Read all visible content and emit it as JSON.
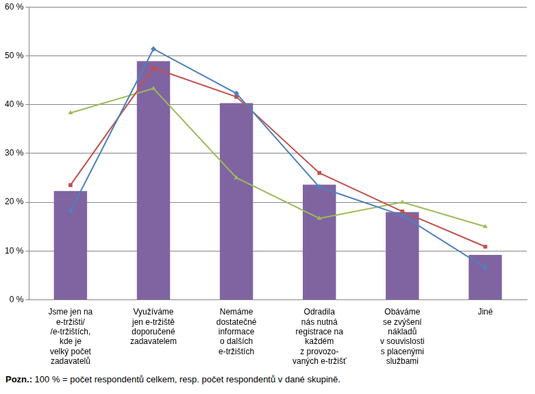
{
  "chart_data": {
    "type": "bar",
    "categories": [
      [
        "Jsme jen na",
        "e-tržišti/",
        "/e-tržištích,",
        "kde je",
        "velký počet",
        "zadavatelů"
      ],
      [
        "Využíváme",
        "jen e-tržiště",
        "doporučené",
        "zadavatelem"
      ],
      [
        "Nemáme",
        "dostatečné",
        "informace",
        "o dalších",
        "e-tržištích"
      ],
      [
        "Odradila",
        "nás nutná",
        "registrace na",
        "každém",
        "z provozo-",
        "vaných e-tržišť"
      ],
      [
        "Obáváme",
        "se zvýšení",
        "nákladů",
        "v souvislosti",
        "s placenými",
        "službami"
      ],
      [
        "Jiné"
      ]
    ],
    "series": [
      {
        "type": "bar",
        "color": "#8064a2",
        "values": [
          22.3,
          48.9,
          40.3,
          23.6,
          18.0,
          9.2
        ]
      },
      {
        "type": "line",
        "color": "#4f81bd",
        "marker": "diamond",
        "values": [
          18.2,
          51.4,
          42.3,
          23.1,
          17.3,
          6.6
        ]
      },
      {
        "type": "line",
        "color": "#c0504d",
        "marker": "square",
        "values": [
          23.5,
          47.5,
          41.6,
          26.0,
          18.1,
          10.9
        ]
      },
      {
        "type": "line",
        "color": "#9bbb59",
        "marker": "triangle",
        "values": [
          38.3,
          43.3,
          25.0,
          16.7,
          20.0,
          15.0
        ]
      }
    ],
    "ylim": [
      0,
      60
    ],
    "yticks": [
      {
        "value": 0,
        "label": "0 %"
      },
      {
        "value": 10,
        "label": "10 %"
      },
      {
        "value": 20,
        "label": "20 %"
      },
      {
        "value": 30,
        "label": "30 %"
      },
      {
        "value": 40,
        "label": "40 %"
      },
      {
        "value": 50,
        "label": "50 %"
      },
      {
        "value": 60,
        "label": "60 %"
      }
    ],
    "grid": true,
    "annotations": [
      "Pozn.: 100 % = počet respondentů celkem, resp. počet respondentů v dané skupině."
    ]
  }
}
